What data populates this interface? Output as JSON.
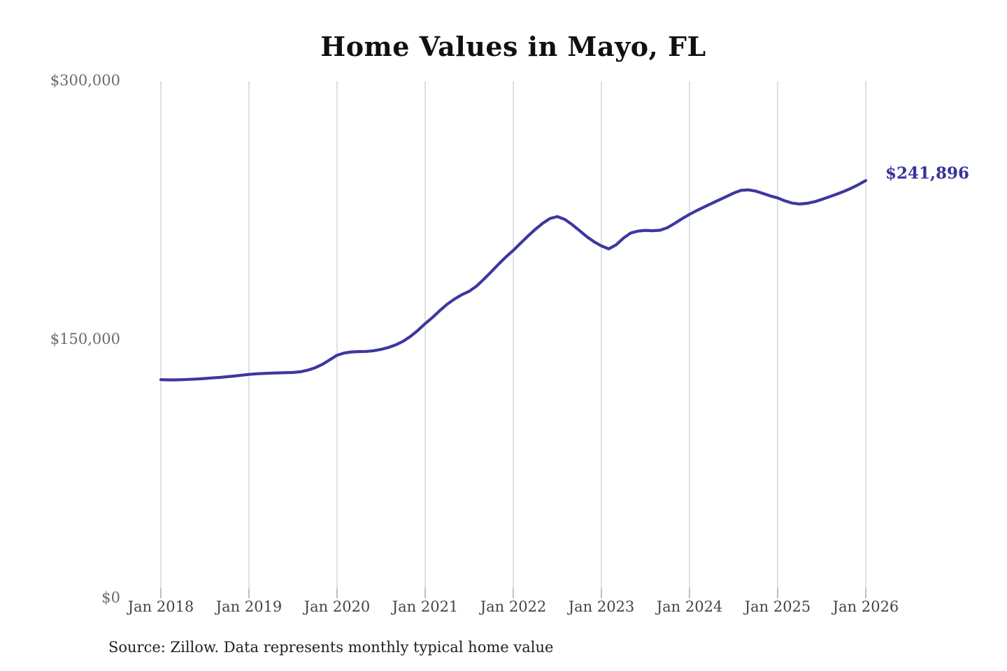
{
  "title": "Home Values in Mayo, FL",
  "annotation": {
    "label": "$241,896",
    "color": "#37329b"
  },
  "source_note": "Source: Zillow. Data represents monthly typical home value",
  "colors": {
    "line": "#3d37a0",
    "gridline": "#cfcfcf",
    "tick_mark": "#9a9a9a",
    "y_label": "#6b6b6b",
    "x_label": "#454545",
    "title": "#101010"
  },
  "chart_data": {
    "type": "line",
    "title": "Home Values in Mayo, FL",
    "series_name": "Monthly typical home value (Zillow)",
    "x_start": "2018-01",
    "x_end": "2026-01",
    "x_interval": "month",
    "x_tick_labels": [
      "Jan 2018",
      "Jan 2019",
      "Jan 2020",
      "Jan 2021",
      "Jan 2022",
      "Jan 2023",
      "Jan 2024",
      "Jan 2025",
      "Jan 2026"
    ],
    "x_tick_month_indices": [
      0,
      12,
      24,
      36,
      48,
      60,
      72,
      84,
      96
    ],
    "y_tick_labels": [
      "$0",
      "$150,000",
      "$300,000"
    ],
    "y_tick_values": [
      0,
      150000,
      300000
    ],
    "ylim": [
      0,
      300000
    ],
    "grid": "vertical-only",
    "legend": "none",
    "last_value_label": "$241,896",
    "x": [
      "2018-01",
      "2018-02",
      "2018-03",
      "2018-04",
      "2018-05",
      "2018-06",
      "2018-07",
      "2018-08",
      "2018-09",
      "2018-10",
      "2018-11",
      "2018-12",
      "2019-01",
      "2019-02",
      "2019-03",
      "2019-04",
      "2019-05",
      "2019-06",
      "2019-07",
      "2019-08",
      "2019-09",
      "2019-10",
      "2019-11",
      "2019-12",
      "2020-01",
      "2020-02",
      "2020-03",
      "2020-04",
      "2020-05",
      "2020-06",
      "2020-07",
      "2020-08",
      "2020-09",
      "2020-10",
      "2020-11",
      "2020-12",
      "2021-01",
      "2021-02",
      "2021-03",
      "2021-04",
      "2021-05",
      "2021-06",
      "2021-07",
      "2021-08",
      "2021-09",
      "2021-10",
      "2021-11",
      "2021-12",
      "2022-01",
      "2022-02",
      "2022-03",
      "2022-04",
      "2022-05",
      "2022-06",
      "2022-07",
      "2022-08",
      "2022-09",
      "2022-10",
      "2022-11",
      "2022-12",
      "2023-01",
      "2023-02",
      "2023-03",
      "2023-04",
      "2023-05",
      "2023-06",
      "2023-07",
      "2023-08",
      "2023-09",
      "2023-10",
      "2023-11",
      "2023-12",
      "2024-01",
      "2024-02",
      "2024-03",
      "2024-04",
      "2024-05",
      "2024-06",
      "2024-07",
      "2024-08",
      "2024-09",
      "2024-10",
      "2024-11",
      "2024-12",
      "2025-01",
      "2025-02",
      "2025-03",
      "2025-04",
      "2025-05",
      "2025-06",
      "2025-07",
      "2025-08",
      "2025-09",
      "2025-10",
      "2025-11",
      "2025-12",
      "2026-01"
    ],
    "values": [
      126400,
      126300,
      126300,
      126400,
      126600,
      126800,
      127100,
      127400,
      127700,
      128100,
      128500,
      129000,
      129450,
      129800,
      130000,
      130200,
      130350,
      130450,
      130600,
      131000,
      131900,
      133300,
      135300,
      137900,
      140600,
      141900,
      142500,
      142700,
      142800,
      143200,
      144000,
      145100,
      146600,
      148700,
      151500,
      155000,
      158900,
      162500,
      166500,
      170200,
      173200,
      175700,
      177700,
      180700,
      184700,
      189000,
      193400,
      197600,
      201400,
      205600,
      209700,
      213600,
      217100,
      219900,
      221000,
      219400,
      216400,
      212900,
      209400,
      206400,
      204000,
      202300,
      204600,
      208500,
      211500,
      212600,
      213000,
      212800,
      213100,
      214600,
      217100,
      219800,
      222300,
      224500,
      226600,
      228600,
      230600,
      232600,
      234600,
      236200,
      236500,
      235800,
      234400,
      233000,
      231800,
      230100,
      228800,
      228300,
      228700,
      229600,
      230900,
      232400,
      233900,
      235600,
      237400,
      239500,
      241896
    ]
  }
}
